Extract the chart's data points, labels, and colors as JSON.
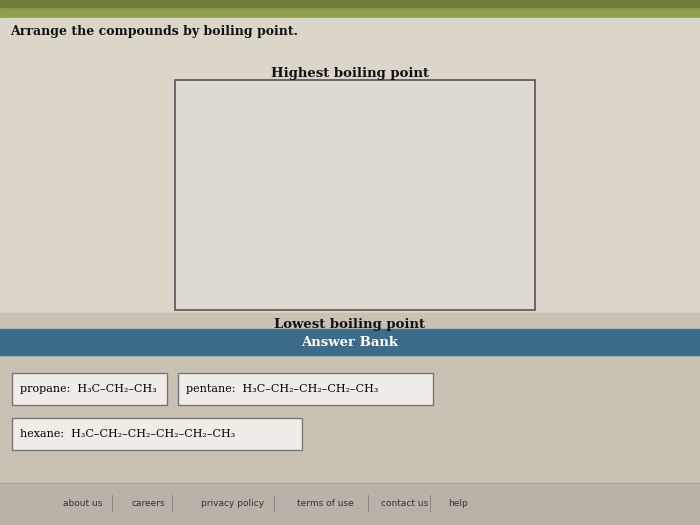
{
  "title": "Arrange the compounds by boiling point.",
  "highest_label": "Highest boiling point",
  "lowest_label": "Lowest boiling point",
  "answer_bank_label": "Answer Bank",
  "answer_bank_bg": "#3d6b8a",
  "answer_bank_text_color": "#ffffff",
  "bg_color": "#c9c2b4",
  "upper_bg": "#dbd5ca",
  "lower_bg": "#c9c2b4",
  "drop_box_bg": "#dedad2",
  "drop_box_border": "#555555",
  "top_bar_color": "#8e9e52",
  "top_bar2_color": "#6e7e3a",
  "compound_box_bg": "#f0ede8",
  "compound_box_border": "#777777",
  "compounds": [
    {
      "name": "propane:",
      "formula": "H₃C–CH₂–CH₃"
    },
    {
      "name": "pentane:",
      "formula": "H₃C–CH₂–CH₂–CH₂–CH₃"
    },
    {
      "name": "hexane:",
      "formula": "H₃C–CH₂–CH₂–CH₂–CH₂–CH₃"
    }
  ],
  "footer_links": [
    "about us",
    "careers",
    "privacy policy",
    "terms of use",
    "contact us",
    "help"
  ],
  "footer_bg": "#b8b2a8"
}
